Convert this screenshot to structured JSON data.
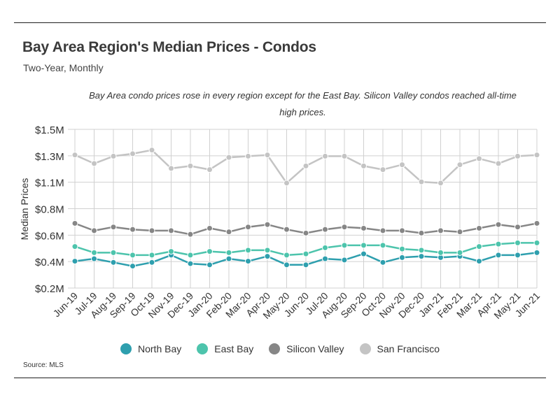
{
  "header": {
    "title": "Bay Area Region's Median Prices - Condos",
    "subtitle": "Two-Year, Monthly",
    "note": "Bay Area condo prices rose in every region except for the East Bay. Silicon Valley condos reached all-time high prices."
  },
  "footer": {
    "source": "Source:  MLS"
  },
  "chart_data": {
    "type": "line",
    "ylabel": "Median Prices",
    "y_ticks": [
      "$1.5M",
      "$1.3M",
      "$1.1M",
      "$0.8M",
      "$0.6M",
      "$0.4M",
      "$0.2M"
    ],
    "ylim": [
      0.2,
      1.5
    ],
    "grid": true,
    "legend_position": "bottom",
    "categories": [
      "Jun-19",
      "Jul-19",
      "Aug-19",
      "Sep-19",
      "Oct-19",
      "Nov-19",
      "Dec-19",
      "Jan-20",
      "Feb-20",
      "Mar-20",
      "Apr-20",
      "May-20",
      "Jun-20",
      "Jul-20",
      "Aug-20",
      "Sep-20",
      "Oct-20",
      "Nov-20",
      "Dec-20",
      "Jan-21",
      "Feb-21",
      "Mar-21",
      "Apr-21",
      "May-21",
      "Jun-21"
    ],
    "series": [
      {
        "name": "North Bay",
        "color": "#2e9fae",
        "values": [
          0.42,
          0.44,
          0.41,
          0.38,
          0.41,
          0.47,
          0.4,
          0.39,
          0.44,
          0.42,
          0.46,
          0.39,
          0.39,
          0.44,
          0.43,
          0.48,
          0.41,
          0.45,
          0.46,
          0.45,
          0.46,
          0.42,
          0.47,
          0.47,
          0.49
        ]
      },
      {
        "name": "East Bay",
        "color": "#4dc4ac",
        "values": [
          0.54,
          0.49,
          0.49,
          0.47,
          0.47,
          0.5,
          0.47,
          0.5,
          0.49,
          0.51,
          0.51,
          0.47,
          0.48,
          0.53,
          0.55,
          0.55,
          0.55,
          0.52,
          0.51,
          0.49,
          0.49,
          0.54,
          0.56,
          0.57,
          0.57
        ]
      },
      {
        "name": "Silicon Valley",
        "color": "#868686",
        "values": [
          0.73,
          0.67,
          0.7,
          0.68,
          0.67,
          0.67,
          0.64,
          0.69,
          0.66,
          0.7,
          0.72,
          0.68,
          0.65,
          0.68,
          0.7,
          0.69,
          0.67,
          0.67,
          0.65,
          0.67,
          0.66,
          0.69,
          0.72,
          0.7,
          0.73
        ]
      },
      {
        "name": "San Francisco",
        "color": "#c4c4c4",
        "values": [
          1.29,
          1.22,
          1.28,
          1.3,
          1.33,
          1.18,
          1.2,
          1.17,
          1.27,
          1.28,
          1.29,
          1.06,
          1.2,
          1.28,
          1.28,
          1.2,
          1.17,
          1.21,
          1.07,
          1.06,
          1.21,
          1.26,
          1.22,
          1.28,
          1.29
        ]
      }
    ]
  }
}
